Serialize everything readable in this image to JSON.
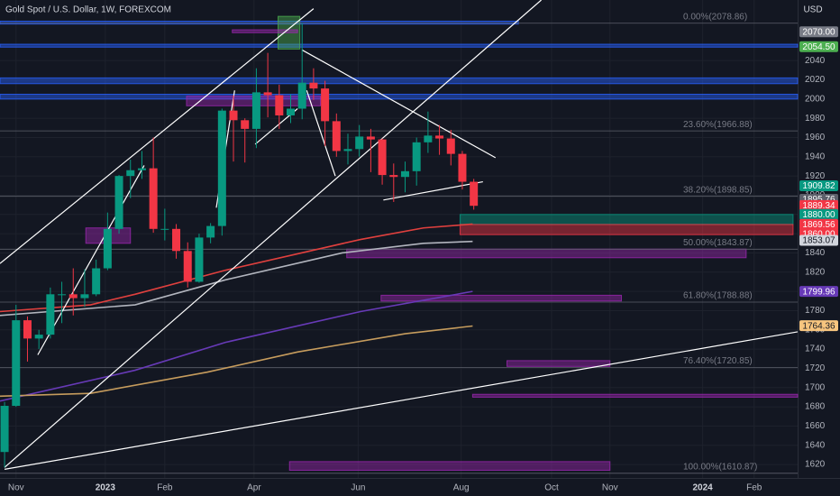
{
  "chart_data": {
    "type": "candlestick",
    "title": "Gold Spot / U.S. Dollar, 1W, FOREXCOM",
    "currency": "USD",
    "up_color": "#089981",
    "down_color": "#f23645",
    "xlim": [
      -0.4,
      69.3
    ],
    "ylim": [
      1606,
      2103
    ],
    "xticks": [
      {
        "value": 1,
        "label": "Nov"
      },
      {
        "value": 8.8,
        "label": "2023"
      },
      {
        "value": 14,
        "label": "Feb"
      },
      {
        "value": 21.8,
        "label": "Apr"
      },
      {
        "value": 30.9,
        "label": "Jun"
      },
      {
        "value": 39.9,
        "label": "Aug"
      },
      {
        "value": 47.8,
        "label": "Oct"
      },
      {
        "value": 52.9,
        "label": "Nov"
      },
      {
        "value": 61,
        "label": "2024"
      },
      {
        "value": 65.5,
        "label": "Feb"
      }
    ],
    "yticks": [
      1620,
      1640,
      1660,
      1680,
      1700,
      1720,
      1740,
      1760,
      1780,
      1800,
      1820,
      1840,
      1860,
      1880,
      1900,
      1920,
      1940,
      1960,
      1980,
      2000,
      2020,
      2040
    ],
    "x": [
      0,
      1,
      2,
      3,
      4,
      5,
      6,
      7,
      8,
      9,
      10,
      11,
      12,
      13,
      14,
      15,
      16,
      17,
      18,
      19,
      20,
      21,
      22,
      23,
      24,
      25,
      26,
      27,
      28,
      29,
      30,
      31,
      32,
      33,
      34,
      35,
      36,
      37,
      38,
      39,
      40,
      41
    ],
    "open": [
      1633,
      1681,
      1770,
      1751,
      1755,
      1797,
      1797,
      1793,
      1797,
      1824,
      1865,
      1920,
      1926,
      1928,
      1865,
      1865,
      1842,
      1810,
      1856,
      1868,
      1988,
      1978,
      1969,
      2007,
      2004,
      1983,
      1990,
      2017,
      2011,
      1977,
      1946,
      1948,
      1961,
      1958,
      1921,
      1919,
      1925,
      1955,
      1962,
      1959,
      1943,
      1914
    ],
    "high": [
      1685,
      1786,
      1774,
      1760,
      1804,
      1810,
      1824,
      1823,
      1833,
      1882,
      1921,
      1937,
      1946,
      1960,
      1886,
      1870,
      1851,
      1860,
      1871,
      1990,
      2004,
      1980,
      2032,
      2048,
      2015,
      2005,
      2079,
      2032,
      2019,
      1985,
      1964,
      1973,
      1969,
      1959,
      1933,
      1935,
      1960,
      1987,
      1973,
      1968,
      1946,
      1917
    ],
    "low": [
      1617,
      1680,
      1727,
      1740,
      1751,
      1767,
      1775,
      1784,
      1795,
      1822,
      1860,
      1897,
      1917,
      1861,
      1853,
      1834,
      1804,
      1809,
      1850,
      1858,
      1935,
      1934,
      1949,
      1981,
      1969,
      1975,
      1979,
      1999,
      1951,
      1940,
      1932,
      1940,
      1924,
      1911,
      1893,
      1903,
      1910,
      1944,
      1942,
      1931,
      1906,
      1885
    ],
    "close": [
      1681,
      1770,
      1751,
      1755,
      1797,
      1797,
      1793,
      1797,
      1824,
      1865,
      1920,
      1926,
      1928,
      1865,
      1865,
      1842,
      1810,
      1856,
      1868,
      1988,
      1978,
      1969,
      2007,
      2004,
      1983,
      1990,
      2017,
      2011,
      1977,
      1946,
      1948,
      1961,
      1958,
      1921,
      1919,
      1925,
      1955,
      1962,
      1959,
      1943,
      1914,
      1889
    ],
    "overlays": [
      {
        "color": "#e0403e",
        "x": [
          -0.4,
          7.5,
          11.4,
          19.3,
          31.1,
          36.6,
          40.9
        ],
        "values": [
          1779,
          1786,
          1797,
          1822,
          1854,
          1866,
          1870
        ]
      },
      {
        "color": "#b2b5be",
        "x": [
          -0.4,
          11.4,
          19.3,
          29.5,
          36.6,
          40.9
        ],
        "values": [
          1775,
          1786,
          1812,
          1840,
          1850,
          1852
        ]
      },
      {
        "color": "#673ab7",
        "x": [
          -0.4,
          11.4,
          19.3,
          31.1,
          40.9
        ],
        "values": [
          1686,
          1718,
          1747,
          1779,
          1800
        ]
      },
      {
        "color": "#c69c5d",
        "x": [
          -0.4,
          7.5,
          17.7,
          25.6,
          35,
          40.9
        ],
        "values": [
          1691,
          1694,
          1716,
          1737,
          1756,
          1764
        ]
      }
    ],
    "trendlines": [
      {
        "x": [
          -0.4,
          27.0
        ],
        "values": [
          1829,
          2094
        ]
      },
      {
        "x": [
          0,
          46.9
        ],
        "values": [
          1617,
          2103
        ]
      },
      {
        "x": [
          0,
          69.3
        ],
        "values": [
          1615,
          1758
        ]
      },
      {
        "x": [
          26,
          42.9
        ],
        "values": [
          2051,
          1939
        ]
      },
      {
        "x": [
          33.1,
          41.8
        ],
        "values": [
          1895,
          1914
        ]
      },
      {
        "x": [
          2.9,
          12.2
        ],
        "values": [
          1734,
          1931
        ]
      },
      {
        "x": [
          18.5,
          20.1
        ],
        "values": [
          1887,
          2009
        ]
      },
      {
        "x": [
          21.9,
          25.6
        ],
        "values": [
          1953,
          1990
        ]
      },
      {
        "x": [
          26.4,
          28.9
        ],
        "values": [
          2009,
          1920
        ]
      }
    ],
    "zones": [
      {
        "from": -0.4,
        "to": 69.3,
        "low": 2054,
        "high": 2057,
        "color": "#2962ff"
      },
      {
        "from": -0.4,
        "to": 69.3,
        "low": 2016,
        "high": 2022,
        "color": "#2962ff"
      },
      {
        "from": -0.4,
        "to": 69.3,
        "low": 2000,
        "high": 2005,
        "color": "#2962ff"
      },
      {
        "from": -0.4,
        "to": 44.9,
        "low": 2078,
        "high": 2081,
        "color": "#2962ff"
      },
      {
        "from": 23.9,
        "to": 25.8,
        "low": 2052,
        "high": 2086,
        "color": "#4caf50"
      },
      {
        "from": 19.9,
        "to": 25.6,
        "low": 2069,
        "high": 2072,
        "color": "#9c27b0"
      },
      {
        "from": 15.9,
        "to": 27.6,
        "low": 1993,
        "high": 2003,
        "color": "#9c27b0"
      },
      {
        "from": 7.1,
        "to": 11,
        "low": 1850,
        "high": 1866,
        "color": "#9c27b0"
      },
      {
        "from": 29.9,
        "to": 64.8,
        "low": 1835,
        "high": 1844,
        "color": "#9c27b0"
      },
      {
        "from": 32.9,
        "to": 53.9,
        "low": 1790,
        "high": 1796,
        "color": "#9c27b0"
      },
      {
        "from": 43.9,
        "to": 52.9,
        "low": 1722,
        "high": 1728,
        "color": "#9c27b0"
      },
      {
        "from": 40.9,
        "to": 69.3,
        "low": 1690,
        "high": 1693,
        "color": "#9c27b0"
      },
      {
        "from": 24.9,
        "to": 52.9,
        "low": 1614,
        "high": 1623,
        "color": "#9c27b0"
      },
      {
        "from": 39.8,
        "to": 68.9,
        "low": 1869.6,
        "high": 1880,
        "color": "#089981"
      },
      {
        "from": 39.8,
        "to": 68.9,
        "low": 1859,
        "high": 1869.6,
        "color": "#f23645"
      }
    ],
    "fib_levels": [
      {
        "label": "0.00%(2078.86)",
        "value": 2078.86
      },
      {
        "label": "23.60%(1966.88)",
        "value": 1966.88
      },
      {
        "label": "38.20%(1898.85)",
        "value": 1898.85
      },
      {
        "label": "50.00%(1843.87)",
        "value": 1843.87
      },
      {
        "label": "61.80%(1788.88)",
        "value": 1788.88
      },
      {
        "label": "76.40%(1720.85)",
        "value": 1720.85
      },
      {
        "label": "100.00%(1610.87)",
        "value": 1610.87
      }
    ],
    "price_labels": [
      {
        "value": 2070,
        "label": "2070.00",
        "color": "#787b86"
      },
      {
        "value": 2054.5,
        "label": "2054.50",
        "color": "#4caf50"
      },
      {
        "value": 1909.82,
        "label": "1909.82",
        "color": "#089981"
      },
      {
        "value": 1895.76,
        "label": "1895.76",
        "color": "#5d606b"
      },
      {
        "value": 1889.34,
        "label": "1889.34",
        "color": "#f23645"
      },
      {
        "value": 1880.36,
        "label": "1880.36",
        "color": "#f23645"
      },
      {
        "value": 1880,
        "label": "1880.00",
        "color": "#089981"
      },
      {
        "value": 1870,
        "label": "1870.00",
        "color": "#5d606b"
      },
      {
        "value": 1869.56,
        "label": "1869.56",
        "color": "#f23645"
      },
      {
        "value": 1860,
        "label": "1860.00",
        "color": "#f23645"
      },
      {
        "value": 1853.07,
        "label": "1853.07",
        "color": "#d1d4dc"
      },
      {
        "value": 1799.96,
        "label": "1799.96",
        "color": "#673ab7"
      },
      {
        "value": 1764.36,
        "label": "1764.36",
        "color": "#f7c57f"
      }
    ]
  }
}
